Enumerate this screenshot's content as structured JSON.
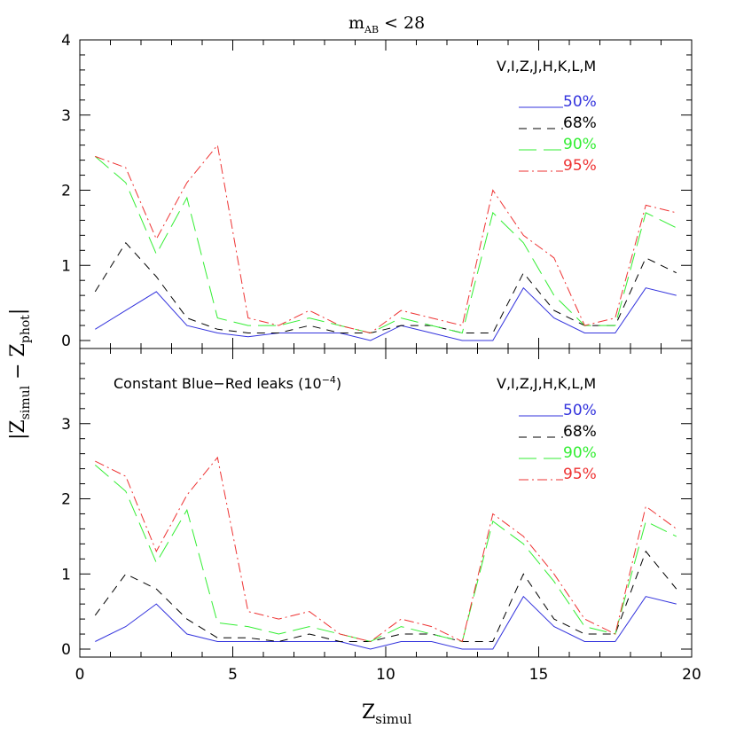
{
  "figure": {
    "ylabel_main": "|Z",
    "ylabel_sub1": "simul",
    "ylabel_mid": " − Z",
    "ylabel_sub2": "phot",
    "ylabel_end": "|",
    "xlabel_main": "Z",
    "xlabel_sub": "simul",
    "xticks": [
      "0",
      "5",
      "10",
      "15",
      "20"
    ]
  },
  "chart_data": [
    {
      "type": "line",
      "title_main": "m",
      "title_sub": "AB",
      "title_rest": " < 28",
      "annotation": "",
      "filters": "V,I,Z,J,H,K,L,M",
      "xlim": [
        0,
        20
      ],
      "ylim": [
        0,
        4
      ],
      "yticks": [
        "0",
        "1",
        "2",
        "3",
        "4"
      ],
      "x": [
        0.5,
        1.5,
        2.5,
        3.5,
        4.5,
        5.5,
        6.5,
        7.5,
        8.5,
        9.5,
        10.5,
        11.5,
        12.5,
        13.5,
        14.5,
        15.5,
        16.5,
        17.5,
        18.5,
        19.5
      ],
      "series": [
        {
          "name": "50%",
          "color": "#3333dd",
          "dash": "solid",
          "values": [
            0.15,
            0.4,
            0.65,
            0.2,
            0.1,
            0.05,
            0.1,
            0.1,
            0.1,
            0.0,
            0.2,
            0.1,
            0.0,
            0.0,
            0.7,
            0.3,
            0.1,
            0.1,
            0.7,
            0.6
          ]
        },
        {
          "name": "68%",
          "color": "#000000",
          "dash": "dashed",
          "values": [
            0.65,
            1.3,
            0.85,
            0.3,
            0.15,
            0.1,
            0.1,
            0.2,
            0.1,
            0.1,
            0.2,
            0.2,
            0.1,
            0.1,
            0.9,
            0.4,
            0.2,
            0.2,
            1.1,
            0.9
          ]
        },
        {
          "name": "90%",
          "color": "#33ee33",
          "dash": "longdash",
          "values": [
            2.45,
            2.1,
            1.15,
            1.9,
            0.3,
            0.2,
            0.2,
            0.3,
            0.2,
            0.1,
            0.3,
            0.2,
            0.1,
            1.7,
            1.3,
            0.6,
            0.2,
            0.2,
            1.7,
            1.5
          ]
        },
        {
          "name": "95%",
          "color": "#ee3333",
          "dash": "dashdot",
          "values": [
            2.45,
            2.3,
            1.35,
            2.1,
            2.6,
            0.3,
            0.2,
            0.4,
            0.2,
            0.1,
            0.4,
            0.3,
            0.2,
            2.0,
            1.4,
            1.1,
            0.2,
            0.3,
            1.8,
            1.7
          ]
        }
      ]
    },
    {
      "type": "line",
      "title_main": "",
      "title_sub": "",
      "title_rest": "",
      "annotation": "Constant Blue−Red leaks (10",
      "annotation_sup": "−4",
      "annotation_end": ")",
      "filters": "V,I,Z,J,H,K,L,M",
      "xlim": [
        0,
        20
      ],
      "ylim": [
        0,
        4
      ],
      "yticks": [
        "0",
        "1",
        "2",
        "3",
        ""
      ],
      "x": [
        0.5,
        1.5,
        2.5,
        3.5,
        4.5,
        5.5,
        6.5,
        7.5,
        8.5,
        9.5,
        10.5,
        11.5,
        12.5,
        13.5,
        14.5,
        15.5,
        16.5,
        17.5,
        18.5,
        19.5
      ],
      "series": [
        {
          "name": "50%",
          "color": "#3333dd",
          "dash": "solid",
          "values": [
            0.1,
            0.3,
            0.6,
            0.2,
            0.1,
            0.1,
            0.1,
            0.1,
            0.1,
            0.0,
            0.1,
            0.1,
            0.0,
            0.0,
            0.7,
            0.3,
            0.1,
            0.1,
            0.7,
            0.6
          ]
        },
        {
          "name": "68%",
          "color": "#000000",
          "dash": "dashed",
          "values": [
            0.45,
            1.0,
            0.8,
            0.4,
            0.15,
            0.15,
            0.1,
            0.2,
            0.1,
            0.1,
            0.2,
            0.2,
            0.1,
            0.1,
            1.0,
            0.4,
            0.2,
            0.2,
            1.3,
            0.8
          ]
        },
        {
          "name": "90%",
          "color": "#33ee33",
          "dash": "longdash",
          "values": [
            2.45,
            2.1,
            1.15,
            1.85,
            0.35,
            0.3,
            0.2,
            0.3,
            0.2,
            0.1,
            0.3,
            0.2,
            0.1,
            1.7,
            1.4,
            0.9,
            0.3,
            0.2,
            1.7,
            1.5
          ]
        },
        {
          "name": "95%",
          "color": "#ee3333",
          "dash": "dashdot",
          "values": [
            2.5,
            2.3,
            1.3,
            2.05,
            2.55,
            0.5,
            0.4,
            0.5,
            0.2,
            0.1,
            0.4,
            0.3,
            0.1,
            1.8,
            1.5,
            1.0,
            0.4,
            0.2,
            1.9,
            1.6
          ]
        }
      ]
    }
  ]
}
